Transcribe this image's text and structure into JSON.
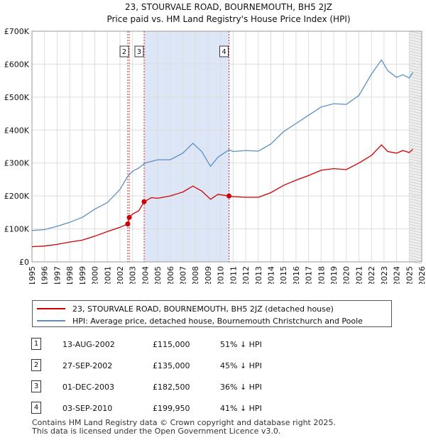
{
  "title_line1": "23, STOURVALE ROAD, BOURNEMOUTH, BH5 2JZ",
  "title_line2": "Price paid vs. HM Land Registry's House Price Index (HPI)",
  "colors": {
    "property": "#cc0000",
    "hpi": "#5b8ec4",
    "shade": "#dde6f7",
    "grid": "#dddddd",
    "marker_line": "#cc0000"
  },
  "chart_data": {
    "type": "line",
    "ylim": [
      0,
      700000
    ],
    "xlim": [
      1995,
      2026
    ],
    "y_ticks": [
      0,
      100000,
      200000,
      300000,
      400000,
      500000,
      600000,
      700000
    ],
    "y_tick_labels": [
      "£0",
      "£100K",
      "£200K",
      "£300K",
      "£400K",
      "£500K",
      "£600K",
      "£700K"
    ],
    "x_ticks": [
      1995,
      1996,
      1997,
      1998,
      1999,
      2000,
      2001,
      2002,
      2003,
      2004,
      2005,
      2006,
      2007,
      2008,
      2009,
      2010,
      2011,
      2012,
      2013,
      2014,
      2015,
      2016,
      2017,
      2018,
      2019,
      2020,
      2021,
      2022,
      2023,
      2024,
      2025,
      2026
    ],
    "shaded_range": [
      2003.92,
      2010.67
    ],
    "forecast_start": 2025.0,
    "sale_markers": [
      {
        "label": "1",
        "x": 2002.62,
        "y": 115000,
        "show_box": false
      },
      {
        "label": "2",
        "x": 2002.74,
        "y": 135000,
        "show_box": true
      },
      {
        "label": "3",
        "x": 2003.92,
        "y": 182500,
        "show_box": true
      },
      {
        "label": "4",
        "x": 2010.67,
        "y": 199950,
        "show_box": true
      }
    ],
    "series": [
      {
        "name": "23, STOURVALE ROAD, BOURNEMOUTH, BH5 2JZ (detached house)",
        "color": "#cc0000",
        "x": [
          1995,
          1996,
          1997,
          1998,
          1999,
          2000,
          2001,
          2002,
          2002.62,
          2002.74,
          2003,
          2003.5,
          2003.92,
          2004.5,
          2005,
          2006,
          2007,
          2007.8,
          2008.5,
          2009.2,
          2009.8,
          2010.67,
          2011,
          2012,
          2013,
          2014,
          2015,
          2016,
          2017,
          2018,
          2019,
          2020,
          2021,
          2022,
          2022.8,
          2023.3,
          2024,
          2024.5,
          2025,
          2025.3
        ],
        "values": [
          46000,
          48000,
          53000,
          60000,
          66000,
          78000,
          92000,
          105000,
          115000,
          135000,
          145000,
          155000,
          182500,
          195000,
          193000,
          200000,
          212000,
          230000,
          215000,
          190000,
          205000,
          199950,
          198000,
          196000,
          196000,
          210000,
          232000,
          248000,
          262000,
          278000,
          283000,
          280000,
          300000,
          323000,
          355000,
          335000,
          330000,
          338000,
          332000,
          342000
        ]
      },
      {
        "name": "HPI: Average price, detached house, Bournemouth Christchurch and Poole",
        "color": "#5b8ec4",
        "x": [
          1995,
          1996,
          1997,
          1998,
          1999,
          2000,
          2001,
          2002,
          2002.62,
          2003,
          2003.5,
          2004,
          2005,
          2006,
          2007,
          2007.8,
          2008.5,
          2009.2,
          2009.8,
          2010.67,
          2011,
          2012,
          2013,
          2014,
          2015,
          2016,
          2017,
          2018,
          2019,
          2020,
          2021,
          2022,
          2022.8,
          2023.3,
          2024,
          2024.5,
          2025,
          2025.3
        ],
        "values": [
          95000,
          98000,
          108000,
          120000,
          135000,
          160000,
          180000,
          220000,
          260000,
          275000,
          285000,
          300000,
          310000,
          310000,
          330000,
          360000,
          335000,
          290000,
          318000,
          340000,
          335000,
          338000,
          336000,
          358000,
          395000,
          420000,
          445000,
          470000,
          480000,
          478000,
          505000,
          570000,
          613000,
          580000,
          560000,
          568000,
          558000,
          575000
        ]
      }
    ]
  },
  "legend": {
    "property_label": "23, STOURVALE ROAD, BOURNEMOUTH, BH5 2JZ (detached house)",
    "hpi_label": "HPI: Average price, detached house, Bournemouth Christchurch and Poole"
  },
  "sales": [
    {
      "num": "1",
      "date": "13-AUG-2002",
      "price": "£115,000",
      "hpi": "51% ↓ HPI"
    },
    {
      "num": "2",
      "date": "27-SEP-2002",
      "price": "£135,000",
      "hpi": "45% ↓ HPI"
    },
    {
      "num": "3",
      "date": "01-DEC-2003",
      "price": "£182,500",
      "hpi": "36% ↓ HPI"
    },
    {
      "num": "4",
      "date": "03-SEP-2010",
      "price": "£199,950",
      "hpi": "41% ↓ HPI"
    }
  ],
  "footer_line1": "Contains HM Land Registry data © Crown copyright and database right 2025.",
  "footer_line2": "This data is licensed under the Open Government Licence v3.0."
}
